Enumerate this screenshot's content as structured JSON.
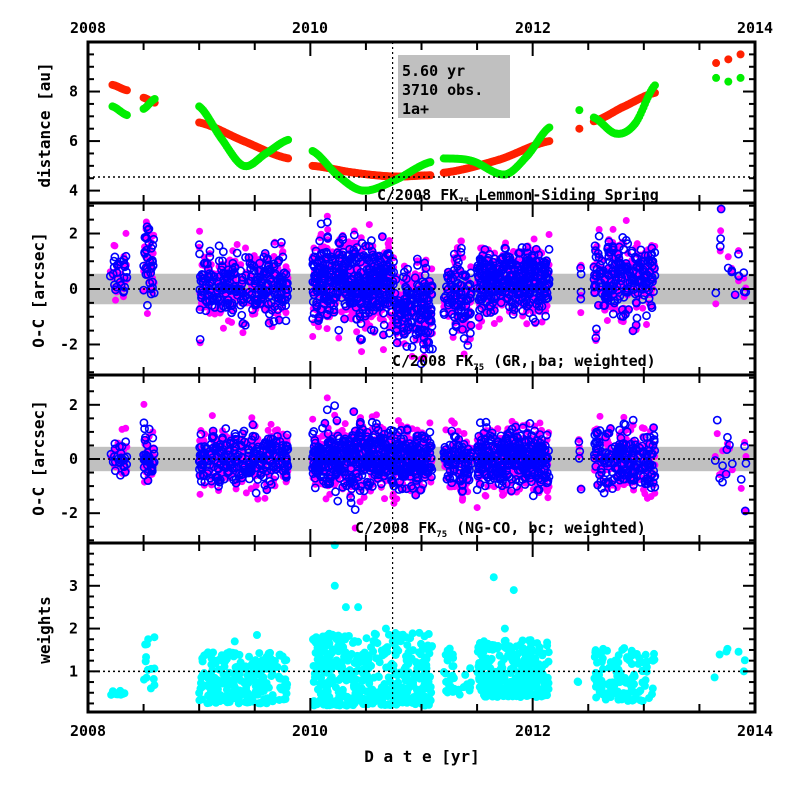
{
  "chart_data": [
    {
      "type": "scatter",
      "panel": "distance",
      "ylabel": "distance [au]",
      "ylim": [
        3.5,
        10
      ],
      "xlim": [
        2008,
        2014
      ],
      "x_ticks": [
        "2008",
        "2010",
        "2012",
        "2014"
      ],
      "y_ticks": [
        "4",
        "6",
        "8"
      ],
      "reference_line_y": 4.55,
      "title": "C/2008 FK",
      "title_sub": "75",
      "title_rest": " Lemmon-Siding Spring",
      "info_box": [
        "5.60 yr",
        "3710 obs.",
        "1a+"
      ],
      "series": [
        {
          "color": "#ff2000",
          "segments": [
            [
              [
                2008.22,
                8.27
              ],
              [
                2008.35,
                8.05
              ]
            ],
            [
              [
                2008.5,
                7.75
              ],
              [
                2008.6,
                7.55
              ]
            ],
            [
              [
                2009.0,
                6.75
              ],
              [
                2009.4,
                6.0
              ],
              [
                2009.8,
                5.3
              ]
            ],
            [
              [
                2010.02,
                5.0
              ],
              [
                2010.4,
                4.72
              ],
              [
                2010.75,
                4.57
              ],
              [
                2011.08,
                4.62
              ]
            ],
            [
              [
                2011.2,
                4.72
              ],
              [
                2011.7,
                5.25
              ],
              [
                2012.15,
                6.0
              ]
            ],
            [
              [
                2012.42,
                6.5
              ]
            ],
            [
              [
                2012.55,
                6.8
              ],
              [
                2012.8,
                7.35
              ],
              [
                2013.1,
                7.95
              ]
            ],
            [
              [
                2013.65,
                9.15
              ]
            ],
            [
              [
                2013.76,
                9.3
              ]
            ],
            [
              [
                2013.87,
                9.5
              ]
            ]
          ]
        },
        {
          "color": "#00ee00",
          "segments": [
            [
              [
                2008.22,
                7.4
              ],
              [
                2008.35,
                7.05
              ]
            ],
            [
              [
                2008.5,
                7.3
              ],
              [
                2008.6,
                7.7
              ]
            ],
            [
              [
                2009.0,
                7.4
              ],
              [
                2009.2,
                6.1
              ],
              [
                2009.4,
                5.0
              ],
              [
                2009.6,
                5.5
              ],
              [
                2009.8,
                6.05
              ]
            ],
            [
              [
                2010.02,
                5.6
              ],
              [
                2010.25,
                4.6
              ],
              [
                2010.47,
                4.0
              ],
              [
                2010.75,
                4.4
              ],
              [
                2011.08,
                5.15
              ]
            ],
            [
              [
                2011.2,
                5.3
              ],
              [
                2011.45,
                5.2
              ],
              [
                2011.75,
                4.65
              ],
              [
                2011.95,
                5.4
              ],
              [
                2012.15,
                6.55
              ]
            ],
            [
              [
                2012.42,
                7.25
              ]
            ],
            [
              [
                2012.55,
                6.95
              ],
              [
                2012.75,
                6.3
              ],
              [
                2012.92,
                6.7
              ],
              [
                2013.1,
                8.25
              ]
            ],
            [
              [
                2013.65,
                8.55
              ]
            ],
            [
              [
                2013.76,
                8.4
              ]
            ],
            [
              [
                2013.87,
                8.55
              ]
            ]
          ]
        }
      ]
    },
    {
      "type": "scatter",
      "panel": "residuals-gr",
      "ylabel": "O-C [arcsec]",
      "ylim": [
        -3.1,
        3.1
      ],
      "y_ticks": [
        "-2",
        "0",
        "2"
      ],
      "band": 0.55,
      "title": "C/2008 FK",
      "title_sub": "75",
      "title_rest": " (GR, ba; weighted)",
      "series_colors": {
        "rejected": "#ff00ff",
        "used": "#0000ff"
      },
      "observing_windows": [
        {
          "start": 2008.2,
          "end": 2008.35,
          "n": 25,
          "mean": 0.6,
          "sd": 0.45
        },
        {
          "start": 2008.5,
          "end": 2008.6,
          "n": 35,
          "mean": 1.1,
          "sd": 0.7
        },
        {
          "start": 2009.0,
          "end": 2009.8,
          "n": 260,
          "mean": 0.1,
          "sd": 0.55
        },
        {
          "start": 2010.02,
          "end": 2010.75,
          "n": 420,
          "mean": 0.2,
          "sd": 0.7
        },
        {
          "start": 2010.75,
          "end": 2011.1,
          "n": 160,
          "mean": -0.7,
          "sd": 0.7
        },
        {
          "start": 2011.2,
          "end": 2011.45,
          "n": 90,
          "mean": -0.2,
          "sd": 0.7
        },
        {
          "start": 2011.5,
          "end": 2012.15,
          "n": 330,
          "mean": 0.25,
          "sd": 0.55
        },
        {
          "start": 2012.4,
          "end": 2012.45,
          "n": 4,
          "mean": 0.2,
          "sd": 0.6
        },
        {
          "start": 2012.55,
          "end": 2013.1,
          "n": 200,
          "mean": 0.4,
          "sd": 0.65
        },
        {
          "start": 2013.62,
          "end": 2013.92,
          "n": 14,
          "mean": 1.0,
          "sd": 1.0
        }
      ]
    },
    {
      "type": "scatter",
      "panel": "residuals-ngco",
      "ylabel": "O-C [arcsec]",
      "ylim": [
        -3.1,
        3.1
      ],
      "y_ticks": [
        "-2",
        "0",
        "2"
      ],
      "band": 0.45,
      "title": "C/2008 FK",
      "title_sub": "75",
      "title_rest": "  (NG-CO, bc; weighted)",
      "series_colors": {
        "rejected": "#ff00ff",
        "used": "#0000ff"
      },
      "observing_windows": [
        {
          "start": 2008.2,
          "end": 2008.35,
          "n": 25,
          "mean": 0.0,
          "sd": 0.35
        },
        {
          "start": 2008.5,
          "end": 2008.6,
          "n": 35,
          "mean": 0.0,
          "sd": 0.45
        },
        {
          "start": 2009.0,
          "end": 2009.8,
          "n": 260,
          "mean": 0.0,
          "sd": 0.45
        },
        {
          "start": 2010.02,
          "end": 2011.1,
          "n": 580,
          "mean": 0.0,
          "sd": 0.55
        },
        {
          "start": 2011.2,
          "end": 2011.45,
          "n": 90,
          "mean": 0.0,
          "sd": 0.5
        },
        {
          "start": 2011.5,
          "end": 2012.15,
          "n": 330,
          "mean": 0.0,
          "sd": 0.5
        },
        {
          "start": 2012.4,
          "end": 2012.45,
          "n": 4,
          "mean": 0.0,
          "sd": 0.6
        },
        {
          "start": 2012.55,
          "end": 2013.1,
          "n": 200,
          "mean": 0.0,
          "sd": 0.5
        },
        {
          "start": 2013.62,
          "end": 2013.92,
          "n": 14,
          "mean": -0.1,
          "sd": 0.65
        }
      ]
    },
    {
      "type": "scatter",
      "panel": "weights",
      "ylabel": "weights",
      "xlabel": "D a t e [yr]",
      "ylim": [
        0.05,
        4.0
      ],
      "y_ticks": [
        "1",
        "2",
        "3"
      ],
      "reference_line_y": 1,
      "color": "#00ffff",
      "observing_windows": [
        {
          "start": 2008.2,
          "end": 2008.35,
          "n": 12,
          "low": 0.45,
          "high": 0.55
        },
        {
          "start": 2008.5,
          "end": 2008.6,
          "n": 14,
          "low": 0.6,
          "high": 1.8
        },
        {
          "start": 2009.0,
          "end": 2009.8,
          "n": 220,
          "low": 0.25,
          "high": 1.45
        },
        {
          "start": 2010.02,
          "end": 2011.1,
          "n": 420,
          "low": 0.2,
          "high": 1.9
        },
        {
          "start": 2011.2,
          "end": 2011.45,
          "n": 30,
          "low": 0.45,
          "high": 1.55
        },
        {
          "start": 2011.5,
          "end": 2012.15,
          "n": 260,
          "low": 0.4,
          "high": 1.75
        },
        {
          "start": 2012.4,
          "end": 2012.45,
          "n": 2,
          "low": 0.75,
          "high": 0.8
        },
        {
          "start": 2012.55,
          "end": 2013.1,
          "n": 120,
          "low": 0.3,
          "high": 1.55
        },
        {
          "start": 2013.62,
          "end": 2013.92,
          "n": 6,
          "low": 0.7,
          "high": 1.55
        }
      ],
      "outliers": [
        [
          2010.22,
          3.95
        ],
        [
          2010.22,
          3.0
        ],
        [
          2010.32,
          2.5
        ],
        [
          2010.43,
          2.5
        ],
        [
          2010.68,
          2.0
        ],
        [
          2010.98,
          1.9
        ],
        [
          2011.65,
          3.2
        ],
        [
          2011.83,
          2.9
        ],
        [
          2011.75,
          2.0
        ],
        [
          2009.52,
          1.85
        ],
        [
          2009.32,
          1.7
        ],
        [
          2013.9,
          1.0
        ]
      ]
    }
  ],
  "time_marker_x": 2010.74
}
